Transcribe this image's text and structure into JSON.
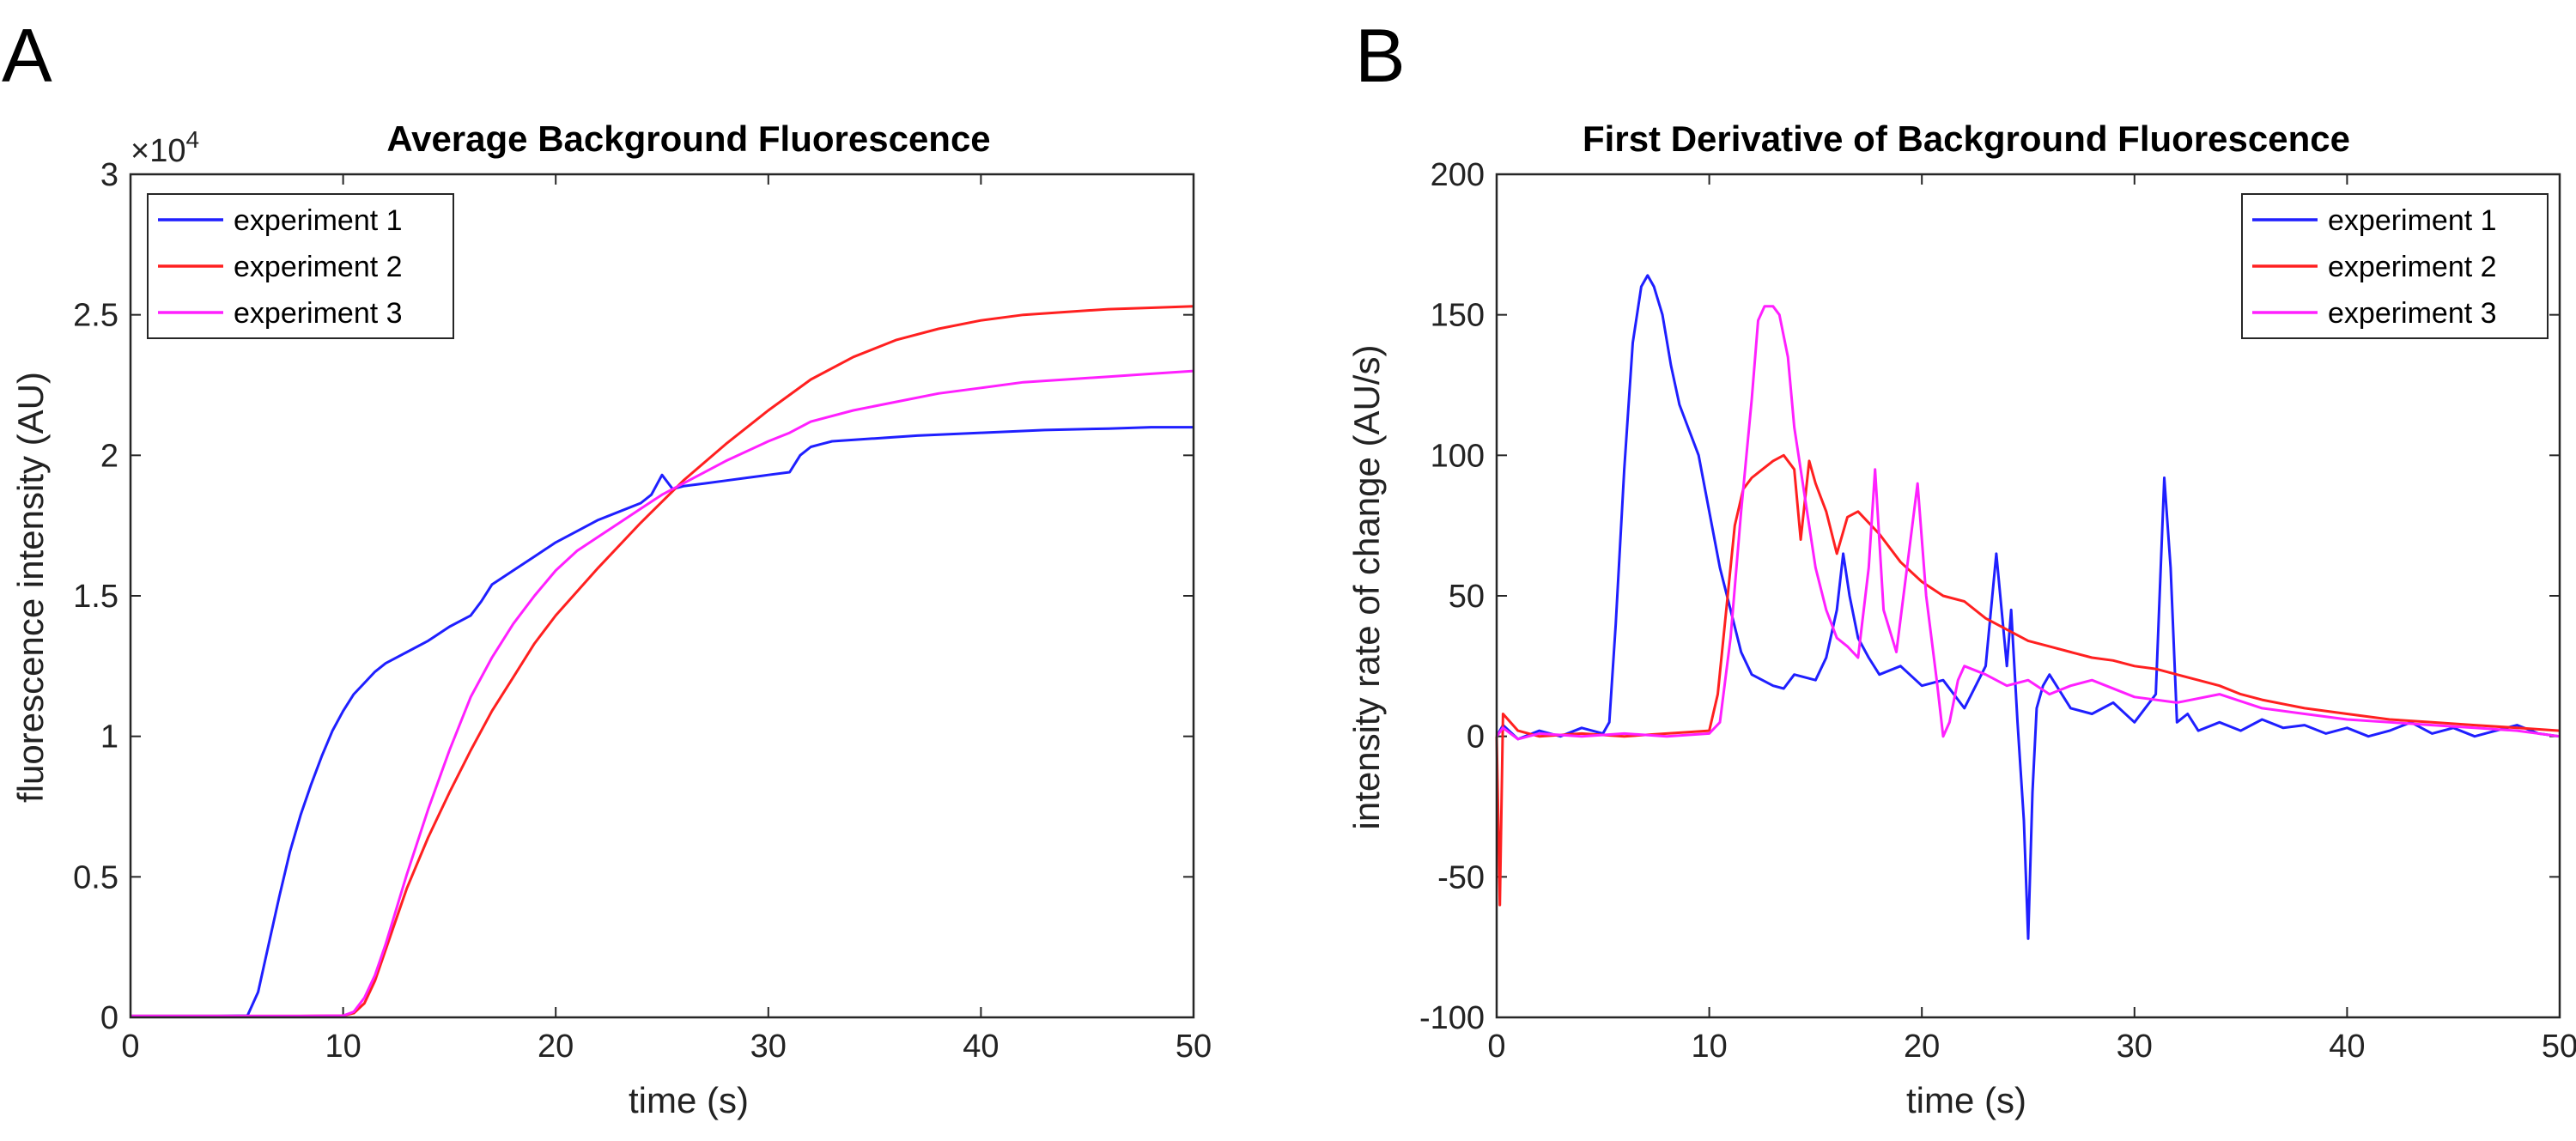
{
  "figure": {
    "panel_a_letter": "A",
    "panel_b_letter": "B"
  },
  "chart_data": [
    {
      "type": "line",
      "title": "Average Background Fluorescence",
      "xlabel": "time (s)",
      "ylabel": "fluorescence intensity (AU)",
      "xlim": [
        0,
        50
      ],
      "ylim": [
        0,
        30000
      ],
      "x_ticks": [
        "0",
        "10",
        "20",
        "30",
        "40",
        "50"
      ],
      "y_ticks": [
        "0",
        "0.5",
        "1",
        "1.5",
        "2",
        "2.5",
        "3"
      ],
      "y_exponent_label": "×10",
      "y_exponent_power": "4",
      "legend_position": "top-left",
      "series": [
        {
          "name": "experiment 1",
          "color": "#1f1fff",
          "x": [
            0,
            2,
            4,
            5.5,
            6,
            6.5,
            7,
            7.5,
            8,
            8.5,
            9,
            9.5,
            10,
            10.5,
            11,
            11.5,
            12,
            13,
            14,
            15,
            16,
            16.5,
            17,
            18,
            19,
            20,
            21,
            22,
            23,
            24,
            24.5,
            25,
            25.5,
            26,
            27,
            28,
            29,
            30,
            31,
            31.5,
            32,
            32.5,
            33,
            35,
            37,
            40,
            43,
            46,
            48,
            50
          ],
          "y": [
            50,
            50,
            50,
            60,
            900,
            2600,
            4300,
            5900,
            7200,
            8300,
            9300,
            10200,
            10900,
            11500,
            11900,
            12300,
            12600,
            13000,
            13400,
            13900,
            14300,
            14800,
            15400,
            15900,
            16400,
            16900,
            17300,
            17700,
            18000,
            18300,
            18600,
            19300,
            18800,
            18900,
            19000,
            19100,
            19200,
            19300,
            19400,
            20000,
            20300,
            20400,
            20500,
            20600,
            20700,
            20800,
            20900,
            20950,
            21000,
            21000
          ]
        },
        {
          "name": "experiment 2",
          "color": "#ff2020",
          "x": [
            0,
            4,
            8,
            10,
            10.5,
            11,
            11.5,
            12,
            13,
            14,
            15,
            16,
            17,
            18,
            19,
            20,
            22,
            24,
            26,
            28,
            30,
            32,
            34,
            36,
            38,
            40,
            42,
            44,
            46,
            48,
            50
          ],
          "y": [
            50,
            50,
            50,
            60,
            150,
            500,
            1300,
            2400,
            4600,
            6400,
            8000,
            9500,
            10900,
            12100,
            13300,
            14300,
            16000,
            17600,
            19100,
            20400,
            21600,
            22700,
            23500,
            24100,
            24500,
            24800,
            25000,
            25100,
            25200,
            25250,
            25300
          ]
        },
        {
          "name": "experiment 3",
          "color": "#ff20ff",
          "x": [
            0,
            4,
            8,
            10,
            10.5,
            11,
            11.5,
            12,
            13,
            14,
            15,
            16,
            17,
            18,
            19,
            20,
            21,
            22,
            23,
            24,
            25,
            26,
            28,
            30,
            31,
            31.5,
            32,
            34,
            36,
            38,
            40,
            42,
            44,
            46,
            48,
            50
          ],
          "y": [
            50,
            50,
            50,
            60,
            200,
            700,
            1500,
            2600,
            5100,
            7400,
            9500,
            11400,
            12800,
            14000,
            15000,
            15900,
            16600,
            17100,
            17600,
            18100,
            18600,
            19000,
            19800,
            20500,
            20800,
            21000,
            21200,
            21600,
            21900,
            22200,
            22400,
            22600,
            22700,
            22800,
            22900,
            23000
          ]
        }
      ]
    },
    {
      "type": "line",
      "title": "First Derivative of Background Fluorescence",
      "xlabel": "time (s)",
      "ylabel": "intensity rate of change (AU/s)",
      "xlim": [
        0,
        50
      ],
      "ylim": [
        -100,
        200
      ],
      "x_ticks": [
        "0",
        "10",
        "20",
        "30",
        "40",
        "50"
      ],
      "y_ticks": [
        "-100",
        "-50",
        "0",
        "50",
        "100",
        "150",
        "200"
      ],
      "legend_position": "top-right",
      "series": [
        {
          "name": "experiment 1",
          "color": "#1f1fff",
          "x": [
            0,
            0.3,
            1,
            2,
            3,
            4,
            5,
            5.3,
            5.6,
            6,
            6.4,
            6.8,
            7.1,
            7.4,
            7.8,
            8.2,
            8.6,
            9,
            9.5,
            10,
            10.5,
            11,
            11.5,
            12,
            12.5,
            13,
            13.5,
            14,
            15,
            15.5,
            16,
            16.3,
            16.6,
            17,
            17.5,
            18,
            19,
            20,
            21,
            22,
            23,
            23.5,
            24,
            24.2,
            24.5,
            24.8,
            25,
            25.2,
            25.4,
            25.7,
            26,
            27,
            28,
            29,
            30,
            31,
            31.4,
            31.7,
            32,
            32.5,
            33,
            34,
            35,
            36,
            37,
            38,
            39,
            40,
            41,
            42,
            43,
            44,
            45,
            46,
            47,
            48,
            49,
            50
          ],
          "y": [
            0,
            4,
            -1,
            2,
            0,
            3,
            1,
            5,
            40,
            95,
            140,
            160,
            164,
            160,
            150,
            132,
            118,
            110,
            100,
            80,
            60,
            45,
            30,
            22,
            20,
            18,
            17,
            22,
            20,
            28,
            45,
            65,
            50,
            35,
            28,
            22,
            25,
            18,
            20,
            10,
            25,
            65,
            25,
            45,
            5,
            -30,
            -72,
            -20,
            10,
            18,
            22,
            10,
            8,
            12,
            5,
            15,
            92,
            60,
            5,
            8,
            2,
            5,
            2,
            6,
            3,
            4,
            1,
            3,
            0,
            2,
            5,
            1,
            3,
            0,
            2,
            4,
            1,
            0
          ]
        },
        {
          "name": "experiment 2",
          "color": "#ff2020",
          "x": [
            0,
            0.15,
            0.3,
            1,
            2,
            4,
            6,
            8,
            10,
            10.4,
            10.8,
            11.2,
            11.6,
            12,
            12.5,
            13,
            13.5,
            14,
            14.3,
            14.7,
            15,
            15.5,
            16,
            16.5,
            17,
            18,
            19,
            20,
            21,
            22,
            23,
            24,
            25,
            26,
            27,
            28,
            29,
            30,
            31,
            32,
            33,
            34,
            35,
            36,
            38,
            40,
            42,
            44,
            46,
            48,
            50
          ],
          "y": [
            0,
            -60,
            8,
            2,
            0,
            1,
            0,
            1,
            2,
            15,
            45,
            75,
            88,
            92,
            95,
            98,
            100,
            95,
            70,
            98,
            90,
            80,
            65,
            78,
            80,
            72,
            62,
            55,
            50,
            48,
            42,
            38,
            34,
            32,
            30,
            28,
            27,
            25,
            24,
            22,
            20,
            18,
            15,
            13,
            10,
            8,
            6,
            5,
            4,
            3,
            2
          ]
        },
        {
          "name": "experiment 3",
          "color": "#ff20ff",
          "x": [
            0,
            0.3,
            1,
            2,
            4,
            6,
            8,
            10,
            10.5,
            11,
            11.5,
            12,
            12.3,
            12.6,
            13,
            13.3,
            13.7,
            14,
            14.5,
            15,
            15.5,
            16,
            16.5,
            17,
            17.5,
            17.8,
            18.2,
            18.8,
            19.3,
            19.8,
            20.2,
            20.7,
            21,
            21.3,
            21.7,
            22,
            23,
            24,
            25,
            26,
            27,
            28,
            30,
            32,
            34,
            36,
            38,
            40,
            42,
            44,
            46,
            48,
            50
          ],
          "y": [
            0,
            3,
            -1,
            1,
            0,
            1,
            0,
            1,
            5,
            35,
            80,
            120,
            148,
            153,
            153,
            150,
            135,
            110,
            85,
            60,
            45,
            35,
            32,
            28,
            60,
            95,
            45,
            30,
            60,
            90,
            50,
            20,
            0,
            5,
            20,
            25,
            22,
            18,
            20,
            15,
            18,
            20,
            14,
            12,
            15,
            10,
            8,
            6,
            5,
            4,
            3,
            2,
            0
          ]
        }
      ]
    }
  ]
}
